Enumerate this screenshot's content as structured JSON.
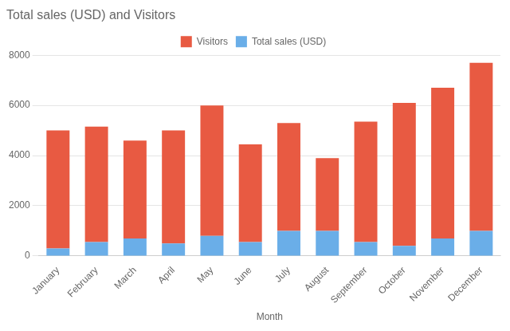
{
  "chart_data": {
    "type": "bar",
    "title": "Total sales (USD) and Visitors",
    "xlabel": "Month",
    "categories": [
      "January",
      "February",
      "March",
      "April",
      "May",
      "June",
      "July",
      "August",
      "September",
      "October",
      "November",
      "December"
    ],
    "series": [
      {
        "name": "Total sales (USD)",
        "color": "#6aaee8",
        "values": [
          300,
          550,
          700,
          500,
          800,
          550,
          1000,
          1000,
          550,
          400,
          700,
          1000
        ]
      },
      {
        "name": "Visitors",
        "color": "#e85a42",
        "values": [
          4700,
          4600,
          3900,
          4500,
          5200,
          3900,
          4300,
          2900,
          4800,
          5700,
          6000,
          6700
        ]
      }
    ],
    "stacked": true,
    "ylim": [
      0,
      8000
    ],
    "yticks": [
      0,
      2000,
      4000,
      6000,
      8000
    ],
    "grid": true,
    "legend": "top"
  }
}
